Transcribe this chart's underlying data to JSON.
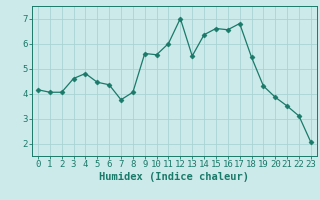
{
  "x": [
    0,
    1,
    2,
    3,
    4,
    5,
    6,
    7,
    8,
    9,
    10,
    11,
    12,
    13,
    14,
    15,
    16,
    17,
    18,
    19,
    20,
    21,
    22,
    23
  ],
  "y": [
    4.15,
    4.05,
    4.05,
    4.6,
    4.8,
    4.45,
    4.35,
    3.75,
    4.05,
    5.6,
    5.55,
    6.0,
    7.0,
    5.5,
    6.35,
    6.6,
    6.55,
    6.8,
    5.45,
    4.3,
    3.85,
    3.5,
    3.1,
    2.05
  ],
  "line_color": "#1a7a6a",
  "marker": "D",
  "marker_size": 2.5,
  "bg_color": "#cceaea",
  "grid_color": "#aad4d4",
  "xlabel": "Humidex (Indice chaleur)",
  "xlabel_fontsize": 7.5,
  "tick_fontsize": 6.5,
  "ylim": [
    1.5,
    7.5
  ],
  "xlim": [
    -0.5,
    23.5
  ],
  "yticks": [
    2,
    3,
    4,
    5,
    6,
    7
  ],
  "xticks": [
    0,
    1,
    2,
    3,
    4,
    5,
    6,
    7,
    8,
    9,
    10,
    11,
    12,
    13,
    14,
    15,
    16,
    17,
    18,
    19,
    20,
    21,
    22,
    23
  ]
}
